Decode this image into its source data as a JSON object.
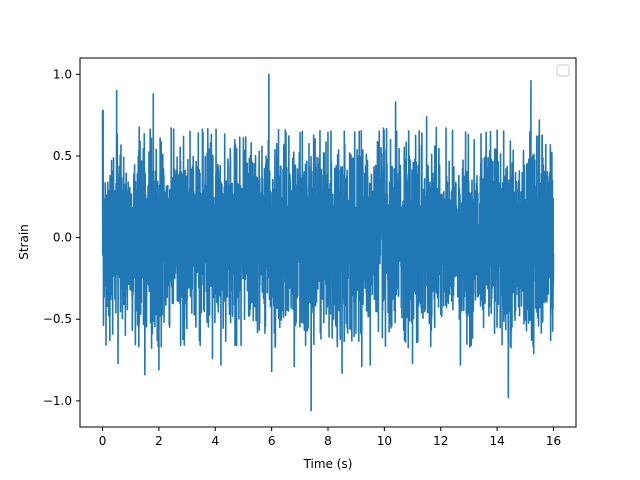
{
  "chart_data": {
    "type": "line",
    "xlabel": "Time (s)",
    "ylabel": "Strain",
    "xlim": [
      -0.8,
      16.8
    ],
    "ylim": [
      -1.16,
      1.1
    ],
    "x_ticks": [
      0,
      2,
      4,
      6,
      8,
      10,
      12,
      14,
      16
    ],
    "x_tick_labels": [
      "0",
      "2",
      "4",
      "6",
      "8",
      "10",
      "12",
      "14",
      "16"
    ],
    "y_ticks": [
      -1.0,
      -0.5,
      0.0,
      0.5,
      1.0
    ],
    "y_tick_labels": [
      "−1.0",
      "−0.5",
      "0.0",
      "0.5",
      "1.0"
    ],
    "grid": false,
    "legend": {
      "placement": "upper-right",
      "entries": []
    },
    "series": [
      {
        "color": "#1f77b4",
        "x_range": [
          0,
          16
        ],
        "envelope": {
          "typical_max": 0.6,
          "typical_min": -0.6,
          "peaks": [
            {
              "x": 0.02,
              "y": 0.78
            },
            {
              "x": 0.5,
              "y": 0.9
            },
            {
              "x": 0.55,
              "y": -0.77
            },
            {
              "x": 1.5,
              "y": -0.84
            },
            {
              "x": 1.8,
              "y": 0.88
            },
            {
              "x": 2.0,
              "y": -0.81
            },
            {
              "x": 3.9,
              "y": -0.74
            },
            {
              "x": 4.2,
              "y": -0.78
            },
            {
              "x": 5.9,
              "y": 1.0
            },
            {
              "x": 6.0,
              "y": -0.82
            },
            {
              "x": 6.8,
              "y": -0.79
            },
            {
              "x": 7.4,
              "y": -1.06
            },
            {
              "x": 8.5,
              "y": -0.83
            },
            {
              "x": 9.2,
              "y": -0.79
            },
            {
              "x": 9.5,
              "y": -0.78
            },
            {
              "x": 10.4,
              "y": 0.83
            },
            {
              "x": 11.0,
              "y": -0.77
            },
            {
              "x": 11.5,
              "y": 0.74
            },
            {
              "x": 12.7,
              "y": -0.78
            },
            {
              "x": 14.4,
              "y": -0.98
            },
            {
              "x": 15.2,
              "y": 0.96
            },
            {
              "x": 15.5,
              "y": 0.72
            },
            {
              "x": 15.3,
              "y": -0.71
            },
            {
              "x": 15.9,
              "y": -0.63
            }
          ]
        }
      }
    ]
  }
}
